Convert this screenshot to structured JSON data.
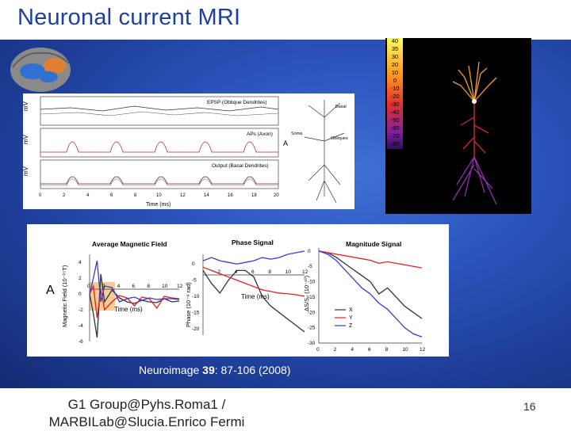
{
  "slide": {
    "title": "Neuronal current MRI",
    "caption_journal": "Neuroimage ",
    "caption_volume": "39",
    "caption_rest": ": 87-106 (2008)",
    "footer_line1": "G1 Group@Pyhs.Roma1 /",
    "footer_line2": "MARBILab@Slucia.Enrico Fermi",
    "page_number": "16"
  },
  "traces_figure": {
    "ylabel": "mV",
    "panel_labels": [
      "EPSP (Oblique Dendrites)",
      "APs (Axon)",
      "Output (Basal Dendrites)"
    ],
    "xlabel": "Time (ms)",
    "x_ticks": [
      "0",
      "2",
      "4",
      "6",
      "8",
      "10",
      "12",
      "14",
      "16",
      "18",
      "20"
    ],
    "neuron_labels": [
      "Basal",
      "Soma",
      "Obliques",
      "A"
    ]
  },
  "colorbar": {
    "ticks": [
      "40",
      "35",
      "30",
      "20",
      "10",
      "0",
      "-10",
      "-20",
      "-30",
      "-40",
      "-50",
      "-60",
      "-70",
      "-80"
    ]
  },
  "magnetic_figure": {
    "panel_label": "A",
    "titles": [
      "Average Magnetic Field",
      "Phase Signal",
      "Magnitude Signal"
    ],
    "ylabels": [
      "Magnetic Field (10⁻¹⁵T)",
      "Phase (10⁻⁹ rad)",
      "ΔS/S₀ (10⁻¹⁰)"
    ],
    "xlabel": "Time (ms)",
    "legend": [
      "X",
      "Y",
      "Z"
    ],
    "colors": {
      "X": "#333333",
      "Y": "#e02020",
      "Z": "#3a3ad0"
    }
  },
  "chart_data": [
    {
      "type": "line",
      "title": "Average Magnetic Field",
      "xlabel": "Time (ms)",
      "ylabel": "Magnetic Field (10⁻¹⁵T)",
      "x_ticks": [
        0,
        2,
        4,
        6,
        8,
        10,
        12
      ],
      "y_ticks": [
        4,
        2,
        0,
        -2,
        -4,
        -6
      ],
      "series": [
        {
          "name": "X",
          "x": [
            0,
            0.5,
            1,
            1.5,
            2,
            3,
            4,
            5,
            6,
            7,
            8,
            9,
            10,
            11,
            12
          ],
          "values": [
            0,
            -2.5,
            -5.5,
            2.5,
            -1,
            0.5,
            -0.5,
            -1,
            -1.2,
            -0.8,
            -1,
            -1.1,
            -0.6,
            -1,
            -0.9
          ]
        },
        {
          "name": "Y",
          "x": [
            0,
            0.5,
            1,
            1.5,
            2,
            3,
            4,
            5,
            6,
            7,
            8,
            9,
            10,
            11,
            12
          ],
          "values": [
            0,
            1,
            -3,
            0.5,
            -2,
            -1,
            -0.2,
            -0.5,
            -1.5,
            -0.4,
            -0.6,
            -1.8,
            -0.3,
            -0.5,
            -0.6
          ]
        },
        {
          "name": "Z",
          "x": [
            0,
            0.5,
            1,
            1.5,
            2,
            3,
            4,
            5,
            6,
            7,
            8,
            9,
            10,
            11,
            12
          ],
          "values": [
            0,
            2,
            4.2,
            -1,
            1,
            0.8,
            -1,
            -0.6,
            -0.4,
            -0.8,
            -0.5,
            -0.7,
            -0.6,
            -0.6,
            -0.7
          ]
        }
      ]
    },
    {
      "type": "line",
      "title": "Phase Signal",
      "xlabel": "Time (ms)",
      "ylabel": "Phase (10⁻⁹ rad)",
      "x_ticks": [
        2,
        4,
        6,
        8,
        10,
        12
      ],
      "y_ticks": [
        0,
        -5,
        -10,
        -15,
        -20
      ],
      "series": [
        {
          "name": "X",
          "x": [
            0,
            1,
            2,
            3,
            4,
            5,
            6,
            7,
            8,
            9,
            10,
            11,
            12
          ],
          "values": [
            -2,
            -6,
            -9,
            -5,
            -2,
            -2,
            -4,
            -10,
            -13,
            -15,
            -17,
            -19,
            -21
          ]
        },
        {
          "name": "Y",
          "x": [
            0,
            1,
            2,
            3,
            4,
            5,
            6,
            7,
            8,
            9,
            10,
            11,
            12
          ],
          "values": [
            -1,
            -2,
            -3,
            -4,
            -5,
            -6,
            -7,
            -8,
            -8.5,
            -9,
            -9.2,
            -9.5,
            -10
          ]
        },
        {
          "name": "Z",
          "x": [
            0,
            1,
            2,
            3,
            4,
            5,
            6,
            7,
            8,
            9,
            10,
            11,
            12
          ],
          "values": [
            1,
            2,
            1,
            0.5,
            0,
            0.5,
            1,
            2,
            1.5,
            2,
            3,
            3.5,
            4
          ]
        }
      ]
    },
    {
      "type": "line",
      "title": "Magnitude Signal",
      "xlabel": "",
      "ylabel": "ΔS/S₀ (10⁻¹⁰)",
      "x_ticks": [
        0,
        2,
        4,
        6,
        8,
        10,
        12
      ],
      "y_ticks": [
        0,
        -5,
        -10,
        -15,
        -20,
        -25,
        -30
      ],
      "series": [
        {
          "name": "X",
          "x": [
            0,
            1,
            2,
            3,
            4,
            5,
            6,
            7,
            8,
            9,
            10,
            11,
            12
          ],
          "values": [
            0,
            -0.5,
            -2,
            -4,
            -6,
            -8,
            -10,
            -14,
            -12,
            -15,
            -18,
            -20,
            -22
          ]
        },
        {
          "name": "Y",
          "x": [
            0,
            1,
            2,
            3,
            4,
            5,
            6,
            7,
            8,
            9,
            10,
            11,
            12
          ],
          "values": [
            0,
            -0.5,
            -1,
            -1.5,
            -2,
            -2.5,
            -3,
            -4,
            -3.5,
            -4,
            -4.5,
            -5,
            -5.5
          ]
        },
        {
          "name": "Z",
          "x": [
            0,
            1,
            2,
            3,
            4,
            5,
            6,
            7,
            8,
            9,
            10,
            11,
            12
          ],
          "values": [
            0,
            -1,
            -3,
            -6,
            -9,
            -12,
            -14,
            -17,
            -19,
            -22,
            -25,
            -27,
            -28
          ]
        }
      ]
    }
  ]
}
